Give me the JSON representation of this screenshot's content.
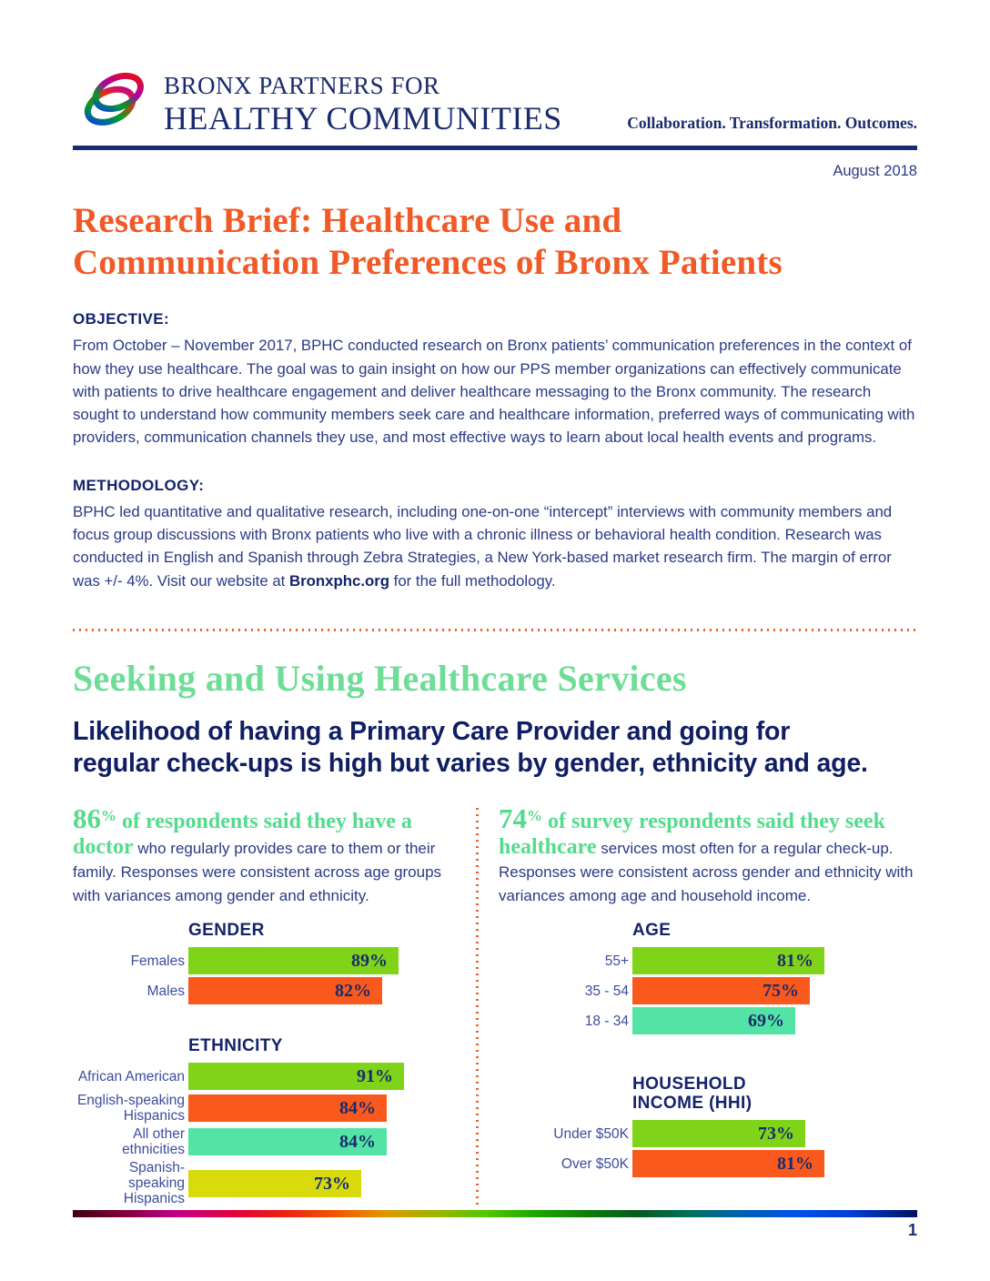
{
  "header": {
    "brand_line1": "BRONX PARTNERS FOR",
    "brand_line2": "HEALTHY COMMUNITIES",
    "tagline": "Collaboration. Transformation. Outcomes.",
    "date": "August 2018"
  },
  "title": "Research Brief: Healthcare Use and\nCommunication Preferences of Bronx Patients",
  "objective": {
    "heading": "OBJECTIVE:",
    "body": "From October – November 2017, BPHC conducted research on Bronx patients’ communication preferences in the context of how they use healthcare. The goal was to gain insight on how our PPS member organizations can effectively communicate with patients to drive healthcare engagement and deliver healthcare messaging to the Bronx community. The research sought to understand how community members seek care and healthcare information, preferred ways of communicating with providers, communication channels they use, and most effective ways to learn about local health events and programs."
  },
  "methodology": {
    "heading": "METHODOLOGY:",
    "body_before_link": "BPHC led quantitative and qualitative research, including one-on-one “intercept” interviews with community members and focus group discussions with Bronx patients who live with a chronic illness or behavioral health condition. Research was conducted in English and Spanish through Zebra Strategies, a New York-based market research firm. The margin of error was +/- 4%. Visit our website at ",
    "link_text": "Bronxphc.org",
    "body_after_link": " for the full methodology."
  },
  "section": {
    "heading": "Seeking and Using Healthcare Services",
    "subheading": "Likelihood of having a Primary Care Provider and going for\nregular check-ups is high but varies by gender, ethnicity and age."
  },
  "columns": {
    "left": {
      "stat": "86",
      "pct": "%",
      "highlight": " of respondents said they have a doctor",
      "rest": " who regularly provides care to them or their family. Responses were consistent across age groups with variances among gender and ethnicity."
    },
    "right": {
      "stat": "74",
      "pct": "%",
      "highlight": " of survey respondents said they seek healthcare",
      "rest": " services most often for a regular check-up. Responses were consistent across gender and ethnicity with variances among age and household income."
    }
  },
  "chart_data": [
    {
      "type": "bar",
      "title": "GENDER",
      "categories": [
        "Females",
        "Males"
      ],
      "values": [
        89,
        82
      ],
      "colors": [
        "#7fd319",
        "#f9591d"
      ],
      "unit": "%",
      "xlim": [
        0,
        100
      ],
      "orientation": "horizontal",
      "value_labels": "inside-right"
    },
    {
      "type": "bar",
      "title": "ETHNICITY",
      "categories": [
        "African American",
        "English-speaking Hispanics",
        "All other ethnicities",
        "Spanish-speaking Hispanics"
      ],
      "values": [
        91,
        84,
        84,
        73
      ],
      "colors": [
        "#7fd319",
        "#f9591d",
        "#53e4a5",
        "#d8da0b"
      ],
      "unit": "%",
      "xlim": [
        0,
        100
      ],
      "orientation": "horizontal",
      "value_labels": "inside-right"
    },
    {
      "type": "bar",
      "title": "AGE",
      "categories": [
        "55+",
        "35 - 54",
        "18 - 34"
      ],
      "values": [
        81,
        75,
        69
      ],
      "colors": [
        "#7fd319",
        "#f9591d",
        "#53e4a5"
      ],
      "unit": "%",
      "xlim": [
        0,
        100
      ],
      "orientation": "horizontal",
      "value_labels": "inside-right"
    },
    {
      "type": "bar",
      "title": "HOUSEHOLD INCOME (HHI)",
      "categories": [
        "Under $50K",
        "Over $50K"
      ],
      "values": [
        73,
        81
      ],
      "colors": [
        "#7fd319",
        "#f9591d"
      ],
      "unit": "%",
      "xlim": [
        0,
        100
      ],
      "orientation": "horizontal",
      "value_labels": "inside-right"
    }
  ],
  "footer": {
    "page_number": "1"
  },
  "colors": {
    "brand_navy": "#1a2b6d",
    "body_blue": "#2a3a85",
    "accent_orange": "#f05a26",
    "divider_orange": "#e8622c",
    "heading_green": "#6edd96",
    "lead_green": "#55db8d"
  }
}
